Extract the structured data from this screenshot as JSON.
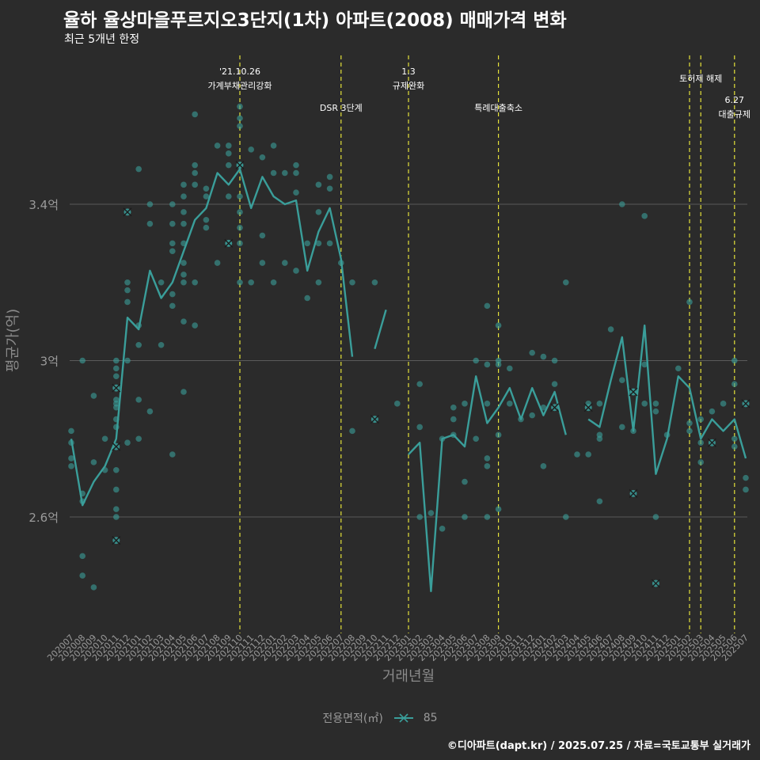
{
  "header": {
    "title": "율하 율상마을푸르지오3단지(1차) 아파트(2008) 매매가격 변화",
    "subtitle": "최근 5개년 한정"
  },
  "caption": "©디아파트(dapt.kr) / 2025.07.25 / 자료=국토교통부 실거래가",
  "legend": {
    "title": "전용면적(㎡)",
    "item": "85"
  },
  "colors": {
    "line": "#3a9e9a",
    "point": "#3a9e9a",
    "vline": "#e5e23a",
    "grid": "#5a5a5a",
    "background": "#2b2b2b",
    "axis_text": "#8a8a8a"
  },
  "chart_data": {
    "type": "line",
    "xlabel": "거래년월",
    "ylabel": "평균가(억)",
    "categories": [
      "202007",
      "202008",
      "202009",
      "202010",
      "202011",
      "202012",
      "202101",
      "202102",
      "202103",
      "202104",
      "202105",
      "202106",
      "202107",
      "202108",
      "202109",
      "202110",
      "202111",
      "202112",
      "202201",
      "202202",
      "202203",
      "202204",
      "202205",
      "202206",
      "202207",
      "202208",
      "202209",
      "202210",
      "202211",
      "202212",
      "202301",
      "202302",
      "202303",
      "202304",
      "202305",
      "202306",
      "202307",
      "202308",
      "202309",
      "202310",
      "202311",
      "202312",
      "202401",
      "202402",
      "202403",
      "202404",
      "202405",
      "202406",
      "202407",
      "202408",
      "202409",
      "202410",
      "202411",
      "202412",
      "202501",
      "202502",
      "202503",
      "202504",
      "202505",
      "202506",
      "202507"
    ],
    "yticks": [
      {
        "value": 2.6,
        "label": "2.6억"
      },
      {
        "value": 3.0,
        "label": "3억"
      },
      {
        "value": 3.4,
        "label": "3.4억"
      }
    ],
    "ylim": [
      2.32,
      3.64
    ],
    "series": [
      {
        "name": "85",
        "values": [
          2.8,
          2.63,
          2.69,
          2.73,
          2.8,
          3.11,
          3.08,
          3.23,
          3.16,
          3.2,
          3.28,
          3.36,
          3.39,
          3.48,
          3.45,
          3.49,
          3.39,
          3.47,
          3.42,
          3.4,
          3.41,
          3.23,
          3.33,
          3.39,
          3.26,
          3.01,
          null,
          3.03,
          3.13,
          null,
          2.76,
          2.79,
          2.41,
          2.8,
          2.81,
          2.78,
          2.96,
          2.84,
          2.88,
          2.93,
          2.85,
          2.93,
          2.86,
          2.92,
          2.81,
          null,
          2.85,
          2.83,
          2.95,
          3.06,
          2.82,
          3.09,
          2.71,
          2.8,
          2.96,
          2.93,
          2.8,
          2.85,
          2.82,
          2.85,
          2.75
        ]
      }
    ],
    "points": [
      [
        0,
        2.79
      ],
      [
        0,
        2.75
      ],
      [
        0,
        2.82
      ],
      [
        0,
        2.73
      ],
      [
        1,
        2.66
      ],
      [
        1,
        2.64
      ],
      [
        1,
        2.45
      ],
      [
        1,
        2.5
      ],
      [
        1,
        3.0
      ],
      [
        2,
        2.42
      ],
      [
        2,
        2.91
      ],
      [
        2,
        2.74
      ],
      [
        3,
        2.8
      ],
      [
        3,
        2.72
      ],
      [
        4,
        2.6
      ],
      [
        4,
        2.62
      ],
      [
        4,
        2.67
      ],
      [
        4,
        2.89
      ],
      [
        4,
        2.85
      ],
      [
        4,
        2.88
      ],
      [
        4,
        2.83
      ],
      [
        4,
        2.9
      ],
      [
        4,
        2.96
      ],
      [
        4,
        2.98
      ],
      [
        4,
        3.0
      ],
      [
        4,
        2.72
      ],
      [
        5,
        3.0
      ],
      [
        5,
        3.2
      ],
      [
        5,
        3.18
      ],
      [
        5,
        3.15
      ],
      [
        5,
        2.79
      ],
      [
        6,
        3.49
      ],
      [
        6,
        3.09
      ],
      [
        6,
        3.04
      ],
      [
        6,
        2.9
      ],
      [
        6,
        2.8
      ],
      [
        7,
        3.4
      ],
      [
        7,
        3.35
      ],
      [
        7,
        2.87
      ],
      [
        8,
        3.2
      ],
      [
        8,
        3.04
      ],
      [
        9,
        3.4
      ],
      [
        9,
        3.35
      ],
      [
        9,
        3.3
      ],
      [
        9,
        3.28
      ],
      [
        9,
        3.17
      ],
      [
        9,
        3.14
      ],
      [
        9,
        2.76
      ],
      [
        10,
        3.45
      ],
      [
        10,
        3.42
      ],
      [
        10,
        3.38
      ],
      [
        10,
        3.35
      ],
      [
        10,
        3.3
      ],
      [
        10,
        3.25
      ],
      [
        10,
        3.22
      ],
      [
        10,
        3.2
      ],
      [
        10,
        3.1
      ],
      [
        10,
        2.92
      ],
      [
        11,
        3.63
      ],
      [
        11,
        3.5
      ],
      [
        11,
        3.48
      ],
      [
        11,
        3.45
      ],
      [
        11,
        3.2
      ],
      [
        11,
        3.09
      ],
      [
        12,
        3.44
      ],
      [
        12,
        3.42
      ],
      [
        12,
        3.36
      ],
      [
        12,
        3.34
      ],
      [
        13,
        3.55
      ],
      [
        13,
        3.25
      ],
      [
        14,
        3.55
      ],
      [
        14,
        3.53
      ],
      [
        14,
        3.5
      ],
      [
        14,
        3.42
      ],
      [
        14,
        3.3
      ],
      [
        15,
        3.65
      ],
      [
        15,
        3.62
      ],
      [
        15,
        3.6
      ],
      [
        15,
        3.5
      ],
      [
        15,
        3.42
      ],
      [
        15,
        3.38
      ],
      [
        15,
        3.34
      ],
      [
        15,
        3.3
      ],
      [
        15,
        3.2
      ],
      [
        16,
        3.54
      ],
      [
        16,
        3.2
      ],
      [
        17,
        3.52
      ],
      [
        17,
        3.25
      ],
      [
        17,
        3.32
      ],
      [
        18,
        3.55
      ],
      [
        18,
        3.48
      ],
      [
        18,
        3.2
      ],
      [
        19,
        3.48
      ],
      [
        19,
        3.25
      ],
      [
        20,
        3.5
      ],
      [
        20,
        3.48
      ],
      [
        20,
        3.43
      ],
      [
        20,
        3.23
      ],
      [
        21,
        3.3
      ],
      [
        21,
        3.16
      ],
      [
        22,
        3.45
      ],
      [
        22,
        3.38
      ],
      [
        22,
        3.3
      ],
      [
        22,
        3.2
      ],
      [
        23,
        3.47
      ],
      [
        23,
        3.44
      ],
      [
        23,
        3.3
      ],
      [
        24,
        3.25
      ],
      [
        25,
        3.2
      ],
      [
        25,
        2.82
      ],
      [
        27,
        3.2
      ],
      [
        29,
        2.89
      ],
      [
        31,
        2.94
      ],
      [
        31,
        2.83
      ],
      [
        31,
        2.6
      ],
      [
        32,
        2.61
      ],
      [
        33,
        2.8
      ],
      [
        33,
        2.57
      ],
      [
        34,
        2.88
      ],
      [
        34,
        2.85
      ],
      [
        34,
        2.81
      ],
      [
        35,
        2.89
      ],
      [
        35,
        2.69
      ],
      [
        35,
        2.6
      ],
      [
        36,
        2.8
      ],
      [
        36,
        3.0
      ],
      [
        37,
        3.14
      ],
      [
        37,
        2.99
      ],
      [
        37,
        2.89
      ],
      [
        37,
        2.75
      ],
      [
        37,
        2.73
      ],
      [
        37,
        2.6
      ],
      [
        38,
        3.09
      ],
      [
        38,
        3.0
      ],
      [
        38,
        2.99
      ],
      [
        38,
        2.81
      ],
      [
        38,
        2.62
      ],
      [
        39,
        2.98
      ],
      [
        39,
        2.89
      ],
      [
        40,
        2.85
      ],
      [
        41,
        3.02
      ],
      [
        41,
        2.86
      ],
      [
        42,
        3.01
      ],
      [
        42,
        2.88
      ],
      [
        42,
        2.73
      ],
      [
        43,
        3.0
      ],
      [
        43,
        2.94
      ],
      [
        44,
        3.2
      ],
      [
        44,
        2.6
      ],
      [
        45,
        2.76
      ],
      [
        46,
        2.89
      ],
      [
        46,
        2.76
      ],
      [
        47,
        2.89
      ],
      [
        47,
        2.81
      ],
      [
        47,
        2.8
      ],
      [
        47,
        2.64
      ],
      [
        48,
        3.08
      ],
      [
        49,
        3.4
      ],
      [
        49,
        2.95
      ],
      [
        49,
        2.83
      ],
      [
        50,
        2.92
      ],
      [
        50,
        2.82
      ],
      [
        51,
        3.37
      ],
      [
        51,
        2.99
      ],
      [
        51,
        2.89
      ],
      [
        52,
        2.89
      ],
      [
        52,
        2.87
      ],
      [
        52,
        2.6
      ],
      [
        53,
        2.81
      ],
      [
        54,
        2.98
      ],
      [
        55,
        3.15
      ],
      [
        55,
        2.84
      ],
      [
        55,
        2.82
      ],
      [
        56,
        2.85
      ],
      [
        56,
        2.79
      ],
      [
        56,
        2.74
      ],
      [
        57,
        2.87
      ],
      [
        58,
        2.89
      ],
      [
        59,
        3.0
      ],
      [
        59,
        2.94
      ],
      [
        59,
        2.8
      ],
      [
        59,
        2.78
      ],
      [
        60,
        2.7
      ],
      [
        60,
        2.67
      ]
    ],
    "markers": [
      [
        4,
        2.93
      ],
      [
        4,
        2.78
      ],
      [
        4,
        2.54
      ],
      [
        5,
        3.38
      ],
      [
        14,
        3.3
      ],
      [
        15,
        3.5
      ],
      [
        27,
        2.85
      ],
      [
        43,
        2.88
      ],
      [
        46,
        2.88
      ],
      [
        50,
        2.66
      ],
      [
        50,
        2.92
      ],
      [
        52,
        2.43
      ],
      [
        57,
        2.79
      ],
      [
        60,
        2.89
      ]
    ],
    "events": [
      {
        "index": 15,
        "lines": [
          "'21.10.26",
          "가계부채관리강화"
        ],
        "row": 0
      },
      {
        "index": 24,
        "lines": [
          "DSR 3단계"
        ],
        "row": 1
      },
      {
        "index": 30,
        "lines": [
          "1.3",
          "규제완화"
        ],
        "row": 0
      },
      {
        "index": 38,
        "lines": [
          "특례대출축소"
        ],
        "row": 1
      },
      {
        "index": 55,
        "lines": [],
        "row": 0
      },
      {
        "index": 56,
        "lines": [
          "토허제 해제"
        ],
        "row": 0
      },
      {
        "index": 59,
        "lines": [
          "6.27",
          "대출규제"
        ],
        "row": 2
      }
    ]
  }
}
